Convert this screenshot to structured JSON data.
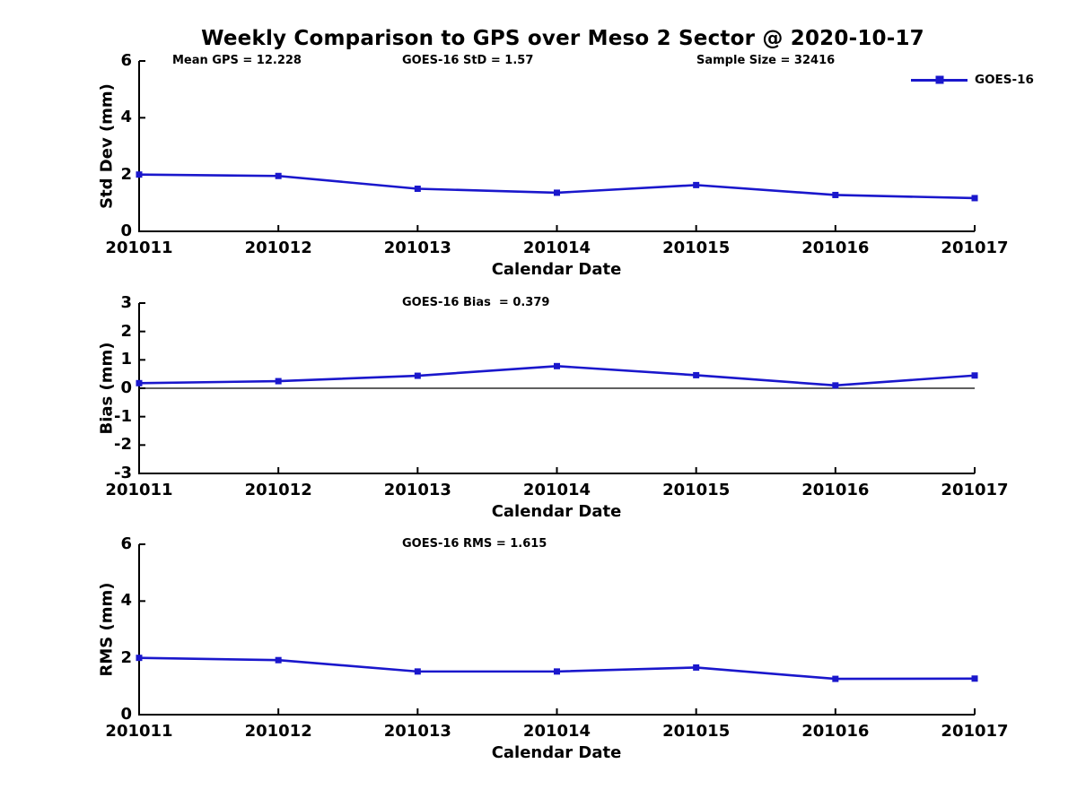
{
  "title": "Weekly Comparison to GPS over Meso 2 Sector @ 2020-10-17",
  "legend": {
    "label": "GOES-16"
  },
  "colors": {
    "series": "#1a17cc",
    "axis": "#000000",
    "text": "#000000",
    "background": "#ffffff"
  },
  "chart_data": [
    {
      "id": "std-dev",
      "type": "line",
      "title": "",
      "xlabel": "Calendar Date",
      "ylabel": "Std Dev (mm)",
      "ylim": [
        0,
        6
      ],
      "yticks": [
        0,
        2,
        4,
        6
      ],
      "grid": false,
      "legend_position": "top-right",
      "categories": [
        "201011",
        "201012",
        "201013",
        "201014",
        "201015",
        "201016",
        "201017"
      ],
      "series": [
        {
          "name": "GOES-16",
          "marker": "square",
          "values": [
            2.0,
            1.95,
            1.5,
            1.36,
            1.63,
            1.28,
            1.17
          ]
        }
      ],
      "annotations": [
        "Mean GPS = 12.228",
        "GOES-16 StD = 1.57",
        "Sample Size = 32416"
      ],
      "zero_line": false
    },
    {
      "id": "bias",
      "type": "line",
      "title": "",
      "xlabel": "Calendar Date",
      "ylabel": "Bias (mm)",
      "ylim": [
        -3,
        3
      ],
      "yticks": [
        3,
        2,
        1,
        0,
        -1,
        -2,
        -3
      ],
      "grid": false,
      "legend_position": "none",
      "categories": [
        "201011",
        "201012",
        "201013",
        "201014",
        "201015",
        "201016",
        "201017"
      ],
      "series": [
        {
          "name": "GOES-16",
          "marker": "square",
          "values": [
            0.18,
            0.25,
            0.44,
            0.78,
            0.46,
            0.1,
            0.45
          ]
        }
      ],
      "annotations": [
        "GOES-16 Bias  = 0.379"
      ],
      "zero_line": true
    },
    {
      "id": "rms",
      "type": "line",
      "title": "",
      "xlabel": "Calendar Date",
      "ylabel": "RMS (mm)",
      "ylim": [
        0,
        6
      ],
      "yticks": [
        0,
        2,
        4,
        6
      ],
      "grid": false,
      "legend_position": "none",
      "categories": [
        "201011",
        "201012",
        "201013",
        "201014",
        "201015",
        "201016",
        "201017"
      ],
      "series": [
        {
          "name": "GOES-16",
          "marker": "square",
          "values": [
            2.0,
            1.92,
            1.52,
            1.52,
            1.66,
            1.26,
            1.27
          ]
        }
      ],
      "annotations": [
        "GOES-16 RMS = 1.615"
      ],
      "zero_line": false
    }
  ]
}
